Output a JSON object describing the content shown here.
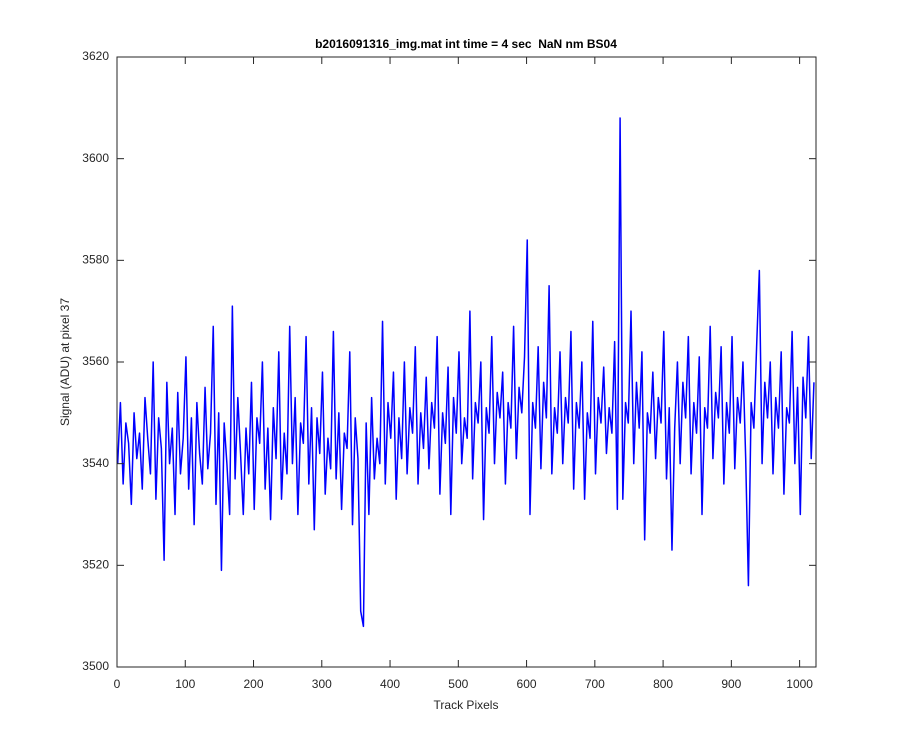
{
  "chart_data": {
    "type": "line",
    "title": "b2016091316_img.mat int time = 4 sec  NaN nm BS04",
    "xlabel": "Track Pixels",
    "ylabel": "Signal (ADU) at pixel 37",
    "color": "#0000ff",
    "xlim": [
      0,
      1024
    ],
    "ylim": [
      3500,
      3620
    ],
    "xticks": [
      0,
      100,
      200,
      300,
      400,
      500,
      600,
      700,
      800,
      900,
      1000
    ],
    "yticks": [
      3500,
      3520,
      3540,
      3560,
      3580,
      3600,
      3620
    ],
    "x": [
      1,
      5,
      9,
      13,
      17,
      21,
      25,
      29,
      33,
      37,
      41,
      45,
      49,
      53,
      57,
      61,
      65,
      69,
      73,
      77,
      81,
      85,
      89,
      93,
      97,
      101,
      105,
      109,
      113,
      117,
      121,
      125,
      129,
      133,
      137,
      141,
      145,
      149,
      153,
      157,
      161,
      165,
      169,
      173,
      177,
      181,
      185,
      189,
      193,
      197,
      201,
      205,
      209,
      213,
      217,
      221,
      225,
      229,
      233,
      237,
      241,
      245,
      249,
      253,
      257,
      261,
      265,
      269,
      273,
      277,
      281,
      285,
      289,
      293,
      297,
      301,
      305,
      309,
      313,
      317,
      321,
      325,
      329,
      333,
      337,
      341,
      345,
      349,
      353,
      357,
      361,
      365,
      369,
      373,
      377,
      381,
      385,
      389,
      393,
      397,
      401,
      405,
      409,
      413,
      417,
      421,
      425,
      429,
      433,
      437,
      441,
      445,
      449,
      453,
      457,
      461,
      465,
      469,
      473,
      477,
      481,
      485,
      489,
      493,
      497,
      501,
      505,
      509,
      513,
      517,
      521,
      525,
      529,
      533,
      537,
      541,
      545,
      549,
      553,
      557,
      561,
      565,
      569,
      573,
      577,
      581,
      585,
      589,
      593,
      597,
      601,
      605,
      609,
      613,
      617,
      621,
      625,
      629,
      633,
      637,
      641,
      645,
      649,
      653,
      657,
      661,
      665,
      669,
      673,
      677,
      681,
      685,
      689,
      693,
      697,
      701,
      705,
      709,
      713,
      717,
      721,
      725,
      729,
      733,
      737,
      741,
      745,
      749,
      753,
      757,
      761,
      765,
      769,
      773,
      777,
      781,
      785,
      789,
      793,
      797,
      801,
      805,
      809,
      813,
      817,
      821,
      825,
      829,
      833,
      837,
      841,
      845,
      849,
      853,
      857,
      861,
      865,
      869,
      873,
      877,
      881,
      885,
      889,
      893,
      897,
      901,
      905,
      909,
      913,
      917,
      921,
      925,
      929,
      933,
      937,
      941,
      945,
      949,
      953,
      957,
      961,
      965,
      969,
      973,
      977,
      981,
      985,
      989,
      993,
      997,
      1001,
      1005,
      1009,
      1013,
      1017,
      1021
    ],
    "values": [
      3540,
      3552,
      3536,
      3548,
      3544,
      3532,
      3550,
      3541,
      3546,
      3535,
      3553,
      3545,
      3538,
      3560,
      3533,
      3549,
      3543,
      3521,
      3556,
      3540,
      3547,
      3530,
      3554,
      3538,
      3545,
      3561,
      3535,
      3549,
      3528,
      3552,
      3542,
      3536,
      3555,
      3539,
      3546,
      3567,
      3532,
      3550,
      3519,
      3548,
      3540,
      3530,
      3571,
      3537,
      3553,
      3542,
      3530,
      3547,
      3538,
      3556,
      3531,
      3549,
      3544,
      3560,
      3535,
      3547,
      3529,
      3551,
      3541,
      3562,
      3533,
      3546,
      3538,
      3567,
      3540,
      3553,
      3530,
      3548,
      3544,
      3565,
      3536,
      3551,
      3527,
      3549,
      3542,
      3558,
      3534,
      3545,
      3539,
      3566,
      3537,
      3550,
      3531,
      3546,
      3543,
      3562,
      3528,
      3549,
      3541,
      3511,
      3508,
      3548,
      3530,
      3553,
      3537,
      3545,
      3540,
      3568,
      3536,
      3552,
      3545,
      3558,
      3533,
      3549,
      3541,
      3560,
      3538,
      3551,
      3546,
      3563,
      3536,
      3550,
      3543,
      3557,
      3539,
      3552,
      3547,
      3565,
      3534,
      3550,
      3544,
      3559,
      3530,
      3553,
      3546,
      3562,
      3540,
      3549,
      3545,
      3570,
      3537,
      3552,
      3548,
      3560,
      3529,
      3551,
      3546,
      3565,
      3540,
      3554,
      3549,
      3558,
      3536,
      3552,
      3547,
      3567,
      3541,
      3555,
      3550,
      3561,
      3584,
      3530,
      3552,
      3547,
      3563,
      3539,
      3556,
      3549,
      3575,
      3538,
      3551,
      3546,
      3562,
      3540,
      3553,
      3548,
      3566,
      3535,
      3552,
      3547,
      3560,
      3533,
      3550,
      3545,
      3568,
      3538,
      3553,
      3548,
      3559,
      3542,
      3551,
      3546,
      3564,
      3531,
      3608,
      3533,
      3552,
      3548,
      3570,
      3540,
      3556,
      3547,
      3562,
      3525,
      3550,
      3546,
      3558,
      3541,
      3553,
      3548,
      3566,
      3537,
      3551,
      3523,
      3547,
      3560,
      3540,
      3556,
      3549,
      3565,
      3538,
      3552,
      3546,
      3561,
      3530,
      3551,
      3547,
      3567,
      3541,
      3554,
      3549,
      3563,
      3536,
      3552,
      3546,
      3565,
      3539,
      3553,
      3548,
      3560,
      3541,
      3516,
      3552,
      3547,
      3563,
      3578,
      3540,
      3556,
      3549,
      3560,
      3538,
      3553,
      3547,
      3562,
      3534,
      3551,
      3548,
      3566,
      3540,
      3555,
      3530,
      3557,
      3549,
      3565,
      3541,
      3556
    ]
  }
}
